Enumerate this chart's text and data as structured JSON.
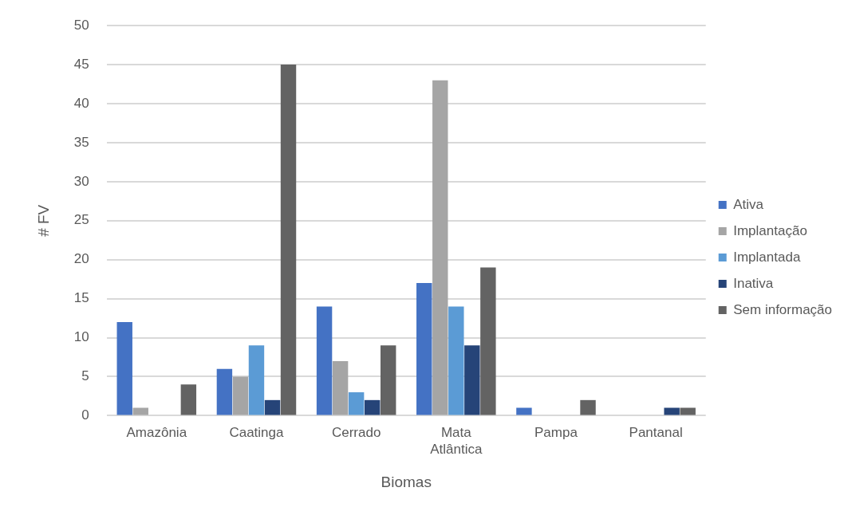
{
  "chart_data": {
    "type": "bar",
    "xlabel": "Biomas",
    "ylabel": "# FV",
    "categories": [
      "Amazônia",
      "Caatinga",
      "Cerrado",
      "Mata Atlântica",
      "Pampa",
      "Pantanal"
    ],
    "series": [
      {
        "name": "Ativa",
        "color": "#4472c4",
        "values": [
          12,
          6,
          14,
          17,
          1,
          0
        ]
      },
      {
        "name": "Implantação",
        "color": "#a5a5a5",
        "values": [
          1,
          5,
          7,
          43,
          0,
          0
        ]
      },
      {
        "name": "Implantada",
        "color": "#5b9bd5",
        "values": [
          0,
          9,
          3,
          14,
          0,
          0
        ]
      },
      {
        "name": "Inativa",
        "color": "#264478",
        "values": [
          0,
          2,
          2,
          9,
          0,
          1
        ]
      },
      {
        "name": "Sem informação",
        "color": "#636363",
        "values": [
          4,
          45,
          9,
          19,
          2,
          1
        ]
      }
    ],
    "ylim": [
      0,
      50
    ],
    "yticks": [
      0,
      5,
      10,
      15,
      20,
      25,
      30,
      35,
      40,
      45,
      50
    ],
    "grid": "y",
    "legend": "right"
  }
}
